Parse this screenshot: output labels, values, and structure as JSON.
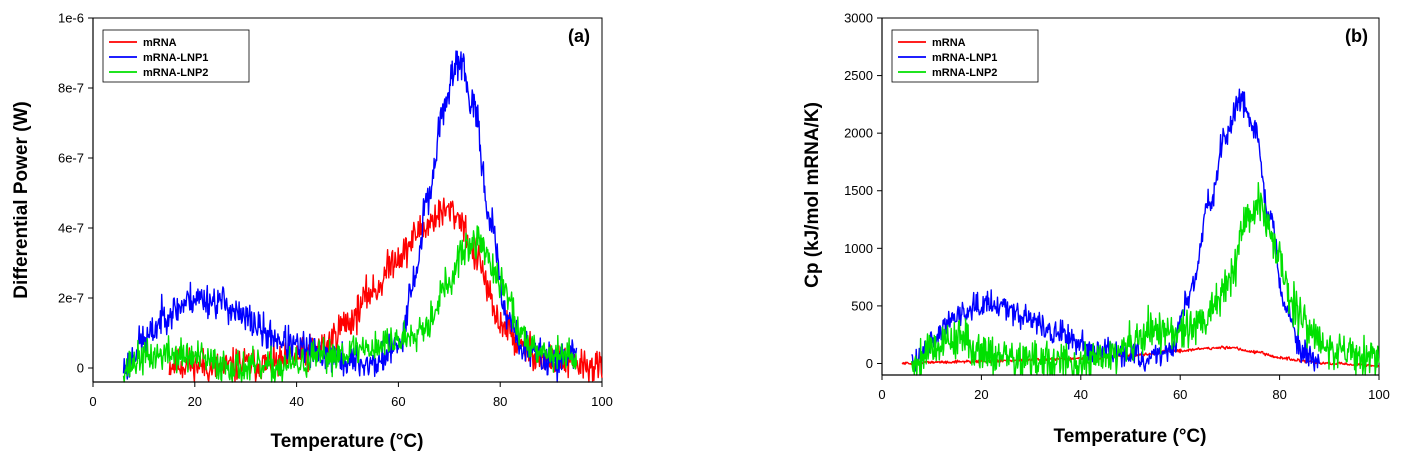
{
  "chart_data": [
    {
      "type": "line",
      "panel_label": "(a)",
      "title": "",
      "xlabel": "Temperature (°C)",
      "ylabel": "Differential Power (W)",
      "xlim": [
        0,
        100
      ],
      "ylim": [
        -4e-08,
        1e-06
      ],
      "x_ticks": [
        0,
        20,
        40,
        60,
        80,
        100
      ],
      "x_tick_labels": [
        "0",
        "20",
        "40",
        "60",
        "80",
        "100"
      ],
      "y_ticks": [
        0,
        2e-07,
        4e-07,
        6e-07,
        8e-07,
        1e-06
      ],
      "y_tick_labels": [
        "0",
        "2e-7",
        "4e-7",
        "6e-7",
        "8e-7",
        "1e-6"
      ],
      "legend_position": "top-left",
      "grid": false,
      "series": [
        {
          "name": "mRNA",
          "color": "#ff0000",
          "noise": 3e-08,
          "seed": 11,
          "x": [
            15,
            20,
            25,
            30,
            35,
            40,
            45,
            50,
            55,
            60,
            65,
            68,
            70,
            72,
            75,
            80,
            85,
            90,
            95,
            100
          ],
          "y": [
            1e-08,
            1e-08,
            0.0,
            1e-08,
            1e-08,
            3e-08,
            6e-08,
            1.3e-07,
            2.2e-07,
            3.2e-07,
            4e-07,
            4.4e-07,
            4.5e-07,
            4.3e-07,
            3.2e-07,
            1.3e-07,
            5e-08,
            2e-08,
            1e-08,
            0.0
          ]
        },
        {
          "name": "mRNA-LNP1",
          "color": "#0000ff",
          "noise": 3e-08,
          "seed": 23,
          "x": [
            6,
            10,
            15,
            20,
            25,
            30,
            35,
            40,
            45,
            50,
            55,
            60,
            63,
            66,
            69,
            72,
            75,
            78,
            81,
            85,
            90,
            95
          ],
          "y": [
            0.0,
            8e-08,
            1.6e-07,
            2e-07,
            1.9e-07,
            1.4e-07,
            9e-08,
            6e-08,
            4e-08,
            2e-08,
            1e-08,
            6e-08,
            2.5e-07,
            5e-07,
            7.5e-07,
            8.8e-07,
            7.3e-07,
            4.3e-07,
            1.6e-07,
            5e-08,
            2e-08,
            4e-08
          ]
        },
        {
          "name": "mRNA-LNP2",
          "color": "#00e000",
          "noise": 3e-08,
          "seed": 37,
          "x": [
            6,
            10,
            15,
            20,
            25,
            30,
            35,
            40,
            45,
            50,
            55,
            60,
            65,
            70,
            73,
            76,
            80,
            85,
            90,
            95
          ],
          "y": [
            0.0,
            3e-08,
            4e-08,
            3e-08,
            1e-08,
            0.0,
            0.0,
            1e-08,
            3e-08,
            5e-08,
            6e-08,
            8e-08,
            1.2e-07,
            2.4e-07,
            3.4e-07,
            3.6e-07,
            2.4e-07,
            8e-08,
            4e-08,
            3e-08
          ]
        }
      ]
    },
    {
      "type": "line",
      "panel_label": "(b)",
      "title": "",
      "xlabel": "Temperature (°C)",
      "ylabel": "Cp (kJ/mol mRNA/K)",
      "xlim": [
        0,
        100
      ],
      "ylim": [
        -100,
        3000
      ],
      "x_ticks": [
        0,
        20,
        40,
        60,
        80,
        100
      ],
      "x_tick_labels": [
        "0",
        "20",
        "40",
        "60",
        "80",
        "100"
      ],
      "y_ticks": [
        0,
        500,
        1000,
        1500,
        2000,
        2500,
        3000
      ],
      "y_tick_labels": [
        "0",
        "500",
        "1000",
        "1500",
        "2000",
        "2500",
        "3000"
      ],
      "legend_position": "top-left",
      "grid": false,
      "series": [
        {
          "name": "mRNA",
          "color": "#ff0000",
          "noise": 8,
          "seed": 51,
          "x": [
            4,
            10,
            20,
            30,
            40,
            50,
            60,
            65,
            70,
            75,
            80,
            85,
            90,
            95,
            100
          ],
          "y": [
            0,
            10,
            20,
            30,
            40,
            70,
            110,
            130,
            140,
            100,
            50,
            20,
            0,
            -10,
            -20
          ]
        },
        {
          "name": "mRNA-LNP1",
          "color": "#0000ff",
          "noise": 70,
          "seed": 63,
          "x": [
            6,
            10,
            15,
            20,
            25,
            30,
            35,
            40,
            45,
            50,
            55,
            58,
            62,
            66,
            69,
            72,
            75,
            78,
            81,
            85,
            88
          ],
          "y": [
            0,
            200,
            420,
            540,
            500,
            380,
            260,
            170,
            110,
            70,
            40,
            120,
            600,
            1400,
            2000,
            2300,
            2050,
            1300,
            500,
            80,
            0
          ]
        },
        {
          "name": "mRNA-LNP2",
          "color": "#00e000",
          "noise": 110,
          "seed": 79,
          "x": [
            6,
            10,
            15,
            20,
            25,
            30,
            35,
            40,
            45,
            50,
            55,
            60,
            65,
            70,
            73,
            76,
            79,
            83,
            88,
            93,
            100
          ],
          "y": [
            0,
            150,
            220,
            120,
            50,
            20,
            0,
            0,
            50,
            150,
            300,
            260,
            380,
            700,
            1250,
            1400,
            1000,
            500,
            200,
            100,
            50
          ]
        }
      ]
    }
  ]
}
